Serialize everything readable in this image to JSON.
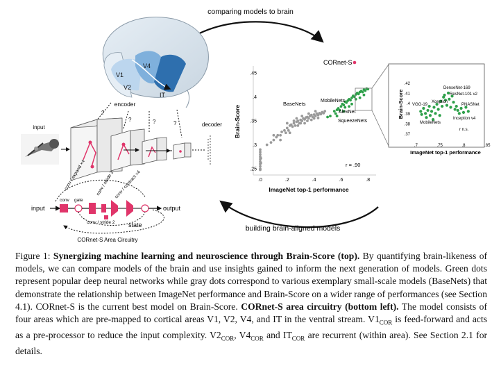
{
  "top_arrow_label": "comparing models to brain",
  "bottom_arrow_label": "building brain-aligned models",
  "encoder": {
    "label": "encoder",
    "areas": [
      "V1",
      "V2",
      "V4",
      "IT"
    ],
    "input_label": "input",
    "decoder_label": "decoder"
  },
  "circuitry": {
    "input_label": "input",
    "output_label": "output",
    "state_label": "state",
    "conv": "conv",
    "gate": "gate",
    "expand": "conv / expand ×4",
    "stride1": "conv / stride 2",
    "contract": "conv / contract ×4",
    "stride2": "conv / stride 2",
    "title": "CORnet-S Area Circuitry"
  },
  "colors": {
    "green": "#2ea04a",
    "gray": "#9a9a9a",
    "pink": "#e0356a",
    "brain_dark": "#2e6fae",
    "brain_light": "#bcd6ee"
  },
  "chart_data": [
    {
      "type": "scatter",
      "title": "",
      "xlabel": "ImageNet top-1 performance",
      "ylabel": "Brain-Score",
      "xlim": [
        0,
        0.85
      ],
      "ylim": [
        0.24,
        0.46
      ],
      "xticks": [
        ".0",
        ".2",
        ".4",
        ".6",
        ".8"
      ],
      "xtick_values": [
        0,
        0.2,
        0.4,
        0.6,
        0.8
      ],
      "yticks": [
        ".25",
        ".3",
        ".35",
        ".4",
        ".45"
      ],
      "ytick_values": [
        0.25,
        0.3,
        0.35,
        0.4,
        0.45
      ],
      "annotations": {
        "cornet": "CORnet-S",
        "basenets": "BaseNets",
        "mobilenets": "MobileNets",
        "alexnet": "AlexNet",
        "squeezenets": "SqueezeNets",
        "r": "r = .90"
      },
      "highlight": {
        "name": "CORnet-S",
        "x": 0.74,
        "y": 0.417
      },
      "series": [
        {
          "name": "BaseNets",
          "color": "gray",
          "points": [
            [
              0.0,
              0.25
            ],
            [
              0.0,
              0.255
            ],
            [
              0.0,
              0.26
            ],
            [
              0.0,
              0.265
            ],
            [
              0.0,
              0.27
            ],
            [
              0.0,
              0.275
            ],
            [
              0.0,
              0.28
            ],
            [
              0.0,
              0.285
            ],
            [
              0.0,
              0.29
            ],
            [
              0.0,
              0.248
            ],
            [
              0.005,
              0.262
            ],
            [
              0.005,
              0.272
            ],
            [
              0.05,
              0.3
            ],
            [
              0.08,
              0.305
            ],
            [
              0.1,
              0.31
            ],
            [
              0.12,
              0.316
            ],
            [
              0.13,
              0.32
            ],
            [
              0.15,
              0.32
            ],
            [
              0.16,
              0.327
            ],
            [
              0.18,
              0.33
            ],
            [
              0.19,
              0.325
            ],
            [
              0.2,
              0.335
            ],
            [
              0.21,
              0.33
            ],
            [
              0.22,
              0.34
            ],
            [
              0.23,
              0.342
            ],
            [
              0.24,
              0.338
            ],
            [
              0.25,
              0.345
            ],
            [
              0.26,
              0.34
            ],
            [
              0.27,
              0.348
            ],
            [
              0.28,
              0.35
            ],
            [
              0.29,
              0.345
            ],
            [
              0.3,
              0.352
            ],
            [
              0.31,
              0.35
            ],
            [
              0.32,
              0.355
            ],
            [
              0.33,
              0.353
            ],
            [
              0.34,
              0.357
            ],
            [
              0.35,
              0.358
            ],
            [
              0.36,
              0.355
            ],
            [
              0.37,
              0.36
            ],
            [
              0.38,
              0.362
            ],
            [
              0.39,
              0.358
            ],
            [
              0.4,
              0.363
            ],
            [
              0.41,
              0.36
            ],
            [
              0.42,
              0.365
            ],
            [
              0.43,
              0.362
            ],
            [
              0.44,
              0.366
            ],
            [
              0.45,
              0.364
            ],
            [
              0.46,
              0.368
            ],
            [
              0.47,
              0.366
            ],
            [
              0.48,
              0.37
            ],
            [
              0.2,
              0.345
            ],
            [
              0.25,
              0.35
            ],
            [
              0.3,
              0.345
            ],
            [
              0.35,
              0.35
            ],
            [
              0.4,
              0.355
            ],
            [
              0.15,
              0.31
            ],
            [
              0.1,
              0.32
            ],
            [
              0.22,
              0.325
            ],
            [
              0.28,
              0.34
            ],
            [
              0.33,
              0.345
            ],
            [
              0.38,
              0.352
            ],
            [
              0.43,
              0.356
            ],
            [
              0.27,
              0.355
            ],
            [
              0.31,
              0.36
            ],
            [
              0.36,
              0.365
            ],
            [
              0.41,
              0.37
            ]
          ]
        },
        {
          "name": "popular deep networks",
          "color": "green",
          "points": [
            [
              0.5,
              0.358
            ],
            [
              0.52,
              0.36
            ],
            [
              0.55,
              0.37
            ],
            [
              0.56,
              0.365
            ],
            [
              0.57,
              0.373
            ],
            [
              0.58,
              0.376
            ],
            [
              0.59,
              0.372
            ],
            [
              0.6,
              0.38
            ],
            [
              0.61,
              0.385
            ],
            [
              0.62,
              0.383
            ],
            [
              0.63,
              0.39
            ],
            [
              0.64,
              0.388
            ],
            [
              0.65,
              0.392
            ],
            [
              0.66,
              0.395
            ],
            [
              0.67,
              0.393
            ],
            [
              0.68,
              0.398
            ],
            [
              0.69,
              0.402
            ],
            [
              0.7,
              0.4
            ],
            [
              0.71,
              0.405
            ],
            [
              0.72,
              0.408
            ],
            [
              0.73,
              0.406
            ],
            [
              0.74,
              0.41
            ],
            [
              0.75,
              0.412
            ],
            [
              0.76,
              0.41
            ],
            [
              0.77,
              0.415
            ],
            [
              0.78,
              0.413
            ],
            [
              0.79,
              0.417
            ],
            [
              0.8,
              0.416
            ],
            [
              0.68,
              0.385
            ],
            [
              0.71,
              0.395
            ],
            [
              0.74,
              0.398
            ],
            [
              0.77,
              0.404
            ],
            [
              0.63,
              0.378
            ],
            [
              0.57,
              0.36
            ],
            [
              0.62,
              0.37
            ],
            [
              0.66,
              0.38
            ]
          ]
        }
      ]
    },
    {
      "type": "scatter",
      "title": "",
      "xlabel": "ImageNet top-1 performance",
      "ylabel": "Brain-Score",
      "xlim": [
        0.695,
        0.835
      ],
      "ylim": [
        0.365,
        0.425
      ],
      "xticks": [
        ".7",
        ".75",
        ".8",
        ".85"
      ],
      "xtick_values": [
        0.7,
        0.75,
        0.8,
        0.85
      ],
      "yticks": [
        ".37",
        ".38",
        ".39",
        ".4",
        ".41",
        ".42"
      ],
      "ytick_values": [
        0.37,
        0.38,
        0.39,
        0.4,
        0.41,
        0.42
      ],
      "annotations": {
        "densenet": "DenseNet-169",
        "resnet": "ResNet-101 v2",
        "vgg": "VGG-19",
        "xception": "Xception",
        "pnasnet": "PNASNet",
        "inception": "Inception v4",
        "mobilenets": "MobileNets",
        "ns": "r n.s."
      },
      "series": [
        {
          "name": "popular deep networks",
          "color": "green",
          "points": [
            [
              0.71,
              0.392
            ],
            [
              0.712,
              0.389
            ],
            [
              0.716,
              0.395
            ],
            [
              0.72,
              0.39
            ],
            [
              0.722,
              0.386
            ],
            [
              0.725,
              0.393
            ],
            [
              0.728,
              0.397
            ],
            [
              0.73,
              0.388
            ],
            [
              0.733,
              0.392
            ],
            [
              0.736,
              0.384
            ],
            [
              0.738,
              0.396
            ],
            [
              0.741,
              0.39
            ],
            [
              0.744,
              0.399
            ],
            [
              0.747,
              0.394
            ],
            [
              0.75,
              0.388
            ],
            [
              0.752,
              0.402
            ],
            [
              0.755,
              0.397
            ],
            [
              0.758,
              0.406
            ],
            [
              0.76,
              0.408
            ],
            [
              0.762,
              0.403
            ],
            [
              0.765,
              0.398
            ],
            [
              0.768,
              0.41
            ],
            [
              0.77,
              0.404
            ],
            [
              0.773,
              0.396
            ],
            [
              0.776,
              0.407
            ],
            [
              0.779,
              0.401
            ],
            [
              0.782,
              0.394
            ],
            [
              0.785,
              0.397
            ],
            [
              0.788,
              0.393
            ],
            [
              0.791,
              0.39
            ],
            [
              0.795,
              0.395
            ],
            [
              0.8,
              0.391
            ],
            [
              0.805,
              0.396
            ],
            [
              0.81,
              0.392
            ]
          ]
        }
      ]
    }
  ],
  "caption": {
    "fig": "Figure 1:",
    "title_bold": "Synergizing machine learning and neuroscience through Brain-Score (top).",
    "body1": "By quantifying brain-likeness of models, we can compare models of the brain and use insights gained to inform the next generation of models. Green dots represent popular deep neural networks while gray dots correspond to various exemplary small-scale models (BaseNets) that demonstrate the relationship between ImageNet performance and Brain-Score on a wider range of performances (see Section 4.1). CORnet-S is the current best model on Brain-Score.",
    "bold2": "CORnet-S area circuitry (bottom left).",
    "body2": "The model consists of four areas which are pre-mapped to cortical areas V1, V2, V4, and IT in the ventral stream. V1",
    "sub": "COR",
    "body3": "is feed-forward and acts as a pre-processor to reduce the input complexity. V2",
    "body4": ", V4",
    "body5": "and IT",
    "body6": "are recurrent (within area). See Section 2.1 for details."
  }
}
